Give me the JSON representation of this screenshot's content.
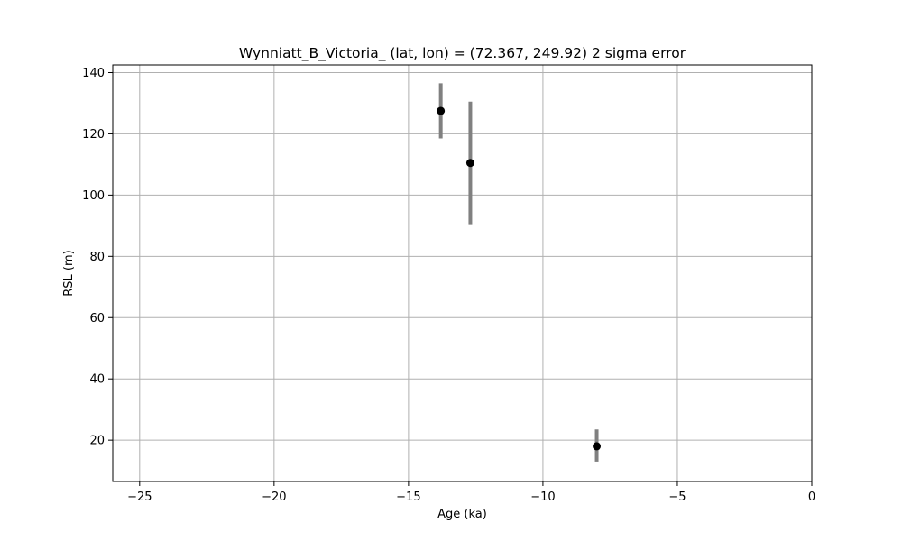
{
  "chart_data": {
    "type": "scatter",
    "title": "Wynniatt_B_Victoria_ (lat, lon) = (72.367, 249.92)  2 sigma error",
    "xlabel": "Age (ka)",
    "ylabel": "RSL (m)",
    "xlim": [
      -26,
      0
    ],
    "ylim": [
      6.5,
      142.5
    ],
    "xticks": [
      -25,
      -20,
      -15,
      -10,
      -5,
      0
    ],
    "xtick_labels": [
      "−25",
      "−20",
      "−15",
      "−10",
      "−5",
      "0"
    ],
    "yticks": [
      20,
      40,
      60,
      80,
      100,
      120,
      140
    ],
    "ytick_labels": [
      "20",
      "40",
      "60",
      "80",
      "100",
      "120",
      "140"
    ],
    "grid": true,
    "points": [
      {
        "x": -13.8,
        "y": 127.5,
        "yerr_low": 118.5,
        "yerr_high": 136.5
      },
      {
        "x": -12.7,
        "y": 110.5,
        "yerr_low": 90.5,
        "yerr_high": 130.5
      },
      {
        "x": -8.0,
        "y": 18.0,
        "yerr_low": 13.0,
        "yerr_high": 23.5
      }
    ],
    "colors": {
      "marker": "#000000",
      "errorbar": "#808080",
      "grid": "#b0b0b0",
      "axes": "#000000"
    }
  }
}
